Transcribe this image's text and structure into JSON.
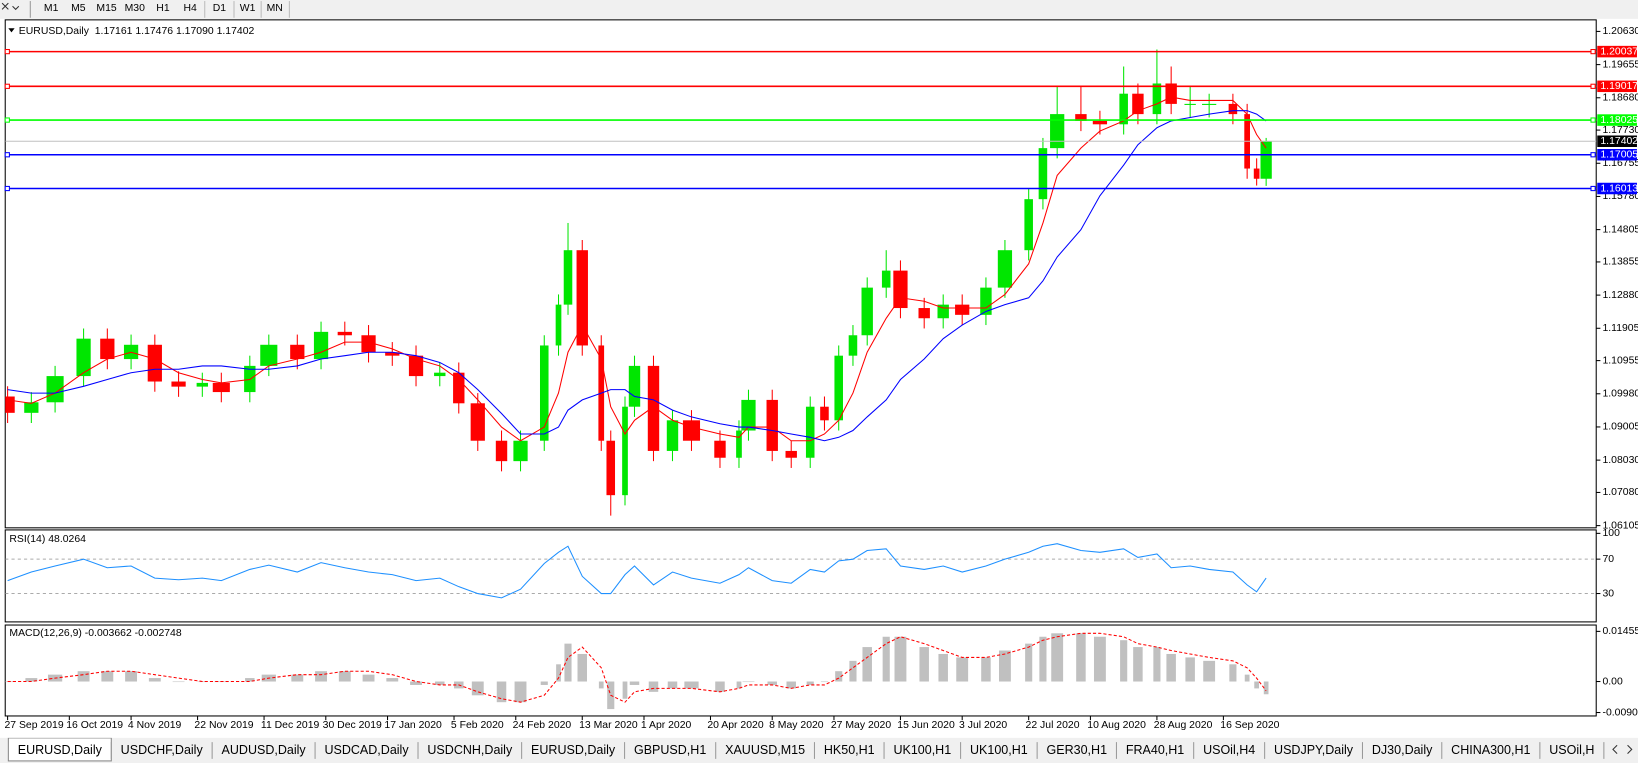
{
  "toolbar": {
    "timeframes": [
      "M1",
      "M5",
      "M15",
      "M30",
      "H1",
      "H4",
      "D1",
      "W1",
      "MN"
    ]
  },
  "chart_data": [
    {
      "type": "candlestick",
      "title": "EURUSD,Daily  1.17161 1.17476 1.17090 1.17402",
      "up_color": "#00e600",
      "down_color": "#ff0000",
      "xlim": [
        -0.5,
        334.5
      ],
      "ylim": [
        1.0604,
        1.2097
      ],
      "xticks": [
        {
          "value": 0,
          "label": "27 Sep 2019"
        },
        {
          "value": 13,
          "label": "16 Oct 2019"
        },
        {
          "value": 26,
          "label": "4 Nov 2019"
        },
        {
          "value": 40,
          "label": "22 Nov 2019"
        },
        {
          "value": 54,
          "label": "11 Dec 2019"
        },
        {
          "value": 67,
          "label": "30 Dec 2019"
        },
        {
          "value": 80,
          "label": "17 Jan 2020"
        },
        {
          "value": 94,
          "label": "5 Feb 2020"
        },
        {
          "value": 107,
          "label": "24 Feb 2020"
        },
        {
          "value": 121,
          "label": "13 Mar 2020"
        },
        {
          "value": 134,
          "label": "1 Apr 2020"
        },
        {
          "value": 148,
          "label": "20 Apr 2020"
        },
        {
          "value": 161,
          "label": "8 May 2020"
        },
        {
          "value": 174,
          "label": "27 May 2020"
        },
        {
          "value": 188,
          "label": "15 Jun 2020"
        },
        {
          "value": 201,
          "label": "3 Jul 2020"
        },
        {
          "value": 215,
          "label": "22 Jul 2020"
        },
        {
          "value": 228,
          "label": "10 Aug 2020"
        },
        {
          "value": 242,
          "label": "28 Aug 2020"
        },
        {
          "value": 256,
          "label": "16 Sep 2020"
        }
      ],
      "yticks": [
        {
          "value": 1.2063,
          "label": "1.20630"
        },
        1.19655,
        {
          "value": 1.1868,
          "label": "1.18680"
        },
        {
          "value": 1.1773,
          "label": "1.17730"
        },
        1.16755,
        {
          "value": 1.1578,
          "label": "1.15780"
        },
        1.14805,
        1.13855,
        {
          "value": 1.1288,
          "label": "1.12880"
        },
        1.11905,
        1.10955,
        {
          "value": 1.0998,
          "label": "1.09980"
        },
        1.09005,
        {
          "value": 1.0803,
          "label": "1.08030"
        },
        {
          "value": 1.0708,
          "label": "1.07080"
        },
        1.06105
      ],
      "hlines": [
        {
          "value": 1.20037,
          "color": "#ff0000"
        },
        {
          "value": 1.19017,
          "color": "#ff0000"
        },
        {
          "value": 1.18025,
          "color": "#00ff00"
        },
        {
          "value": 1.17005,
          "color": "#0000ff"
        },
        {
          "value": 1.16013,
          "color": "#0000ff"
        }
      ],
      "current_price": 1.17402,
      "x": [
        0,
        5,
        10,
        16,
        21,
        26,
        31,
        36,
        41,
        45,
        51,
        55,
        61,
        66,
        71,
        76,
        81,
        86,
        91,
        95,
        99,
        104,
        108,
        113,
        116,
        118,
        121,
        125,
        127,
        130,
        132,
        136,
        140,
        144,
        150,
        154,
        156,
        161,
        165,
        169,
        172,
        175,
        178,
        181,
        185,
        188,
        193,
        197,
        201,
        206,
        210,
        215,
        218,
        221,
        226,
        230,
        235,
        238,
        242,
        245,
        249,
        253,
        258,
        261,
        263,
        265
      ],
      "open": [
        1.099,
        1.0942,
        1.0973,
        1.105,
        1.116,
        1.11,
        1.1142,
        1.1034,
        1.1019,
        1.103,
        1.1003,
        1.108,
        1.1142,
        1.11,
        1.118,
        1.117,
        1.112,
        1.111,
        1.105,
        1.106,
        1.097,
        1.086,
        1.08,
        1.086,
        1.114,
        1.126,
        1.142,
        1.114,
        1.086,
        1.07,
        1.096,
        1.108,
        1.083,
        1.092,
        1.086,
        1.081,
        1.089,
        1.098,
        1.083,
        1.081,
        1.096,
        1.092,
        1.111,
        1.117,
        1.131,
        1.136,
        1.125,
        1.122,
        1.126,
        1.123,
        1.131,
        1.142,
        1.157,
        1.172,
        1.182,
        1.18,
        1.179,
        1.188,
        1.182,
        1.191,
        1.185,
        1.185,
        1.185,
        1.182,
        1.166,
        1.163
      ],
      "high": [
        1.102,
        1.1003,
        1.108,
        1.119,
        1.119,
        1.1172,
        1.1172,
        1.1064,
        1.106,
        1.106,
        1.111,
        1.1172,
        1.1172,
        1.121,
        1.121,
        1.12,
        1.115,
        1.114,
        1.109,
        1.109,
        1.1,
        1.089,
        1.089,
        1.117,
        1.129,
        1.15,
        1.145,
        1.117,
        1.089,
        1.099,
        1.111,
        1.111,
        1.095,
        1.095,
        1.089,
        1.092,
        1.101,
        1.101,
        1.086,
        1.099,
        1.099,
        1.114,
        1.12,
        1.134,
        1.142,
        1.139,
        1.128,
        1.129,
        1.129,
        1.134,
        1.145,
        1.16,
        1.175,
        1.19,
        1.19,
        1.183,
        1.196,
        1.191,
        1.201,
        1.196,
        1.19,
        1.188,
        1.188,
        1.185,
        1.169,
        1.175
      ],
      "low": [
        1.0912,
        1.0912,
        1.0943,
        1.102,
        1.107,
        1.107,
        1.1004,
        1.0989,
        1.0989,
        1.0973,
        1.0973,
        1.105,
        1.107,
        1.107,
        1.114,
        1.109,
        1.108,
        1.102,
        1.102,
        1.094,
        1.083,
        1.077,
        1.077,
        1.083,
        1.111,
        1.123,
        1.111,
        1.083,
        1.064,
        1.067,
        1.093,
        1.08,
        1.08,
        1.083,
        1.078,
        1.078,
        1.086,
        1.08,
        1.078,
        1.078,
        1.089,
        1.089,
        1.108,
        1.114,
        1.128,
        1.122,
        1.119,
        1.119,
        1.12,
        1.12,
        1.128,
        1.139,
        1.154,
        1.169,
        1.177,
        1.176,
        1.176,
        1.179,
        1.179,
        1.182,
        1.181,
        1.181,
        1.179,
        1.163,
        1.161,
        1.1609
      ],
      "close": [
        1.0942,
        1.0973,
        1.105,
        1.116,
        1.11,
        1.1142,
        1.1034,
        1.1019,
        1.103,
        1.1003,
        1.108,
        1.1142,
        1.11,
        1.118,
        1.117,
        1.112,
        1.111,
        1.105,
        1.106,
        1.097,
        1.086,
        1.08,
        1.086,
        1.114,
        1.126,
        1.142,
        1.114,
        1.086,
        1.07,
        1.096,
        1.108,
        1.083,
        1.092,
        1.086,
        1.081,
        1.089,
        1.098,
        1.083,
        1.081,
        1.096,
        1.092,
        1.111,
        1.117,
        1.131,
        1.136,
        1.125,
        1.122,
        1.126,
        1.123,
        1.131,
        1.142,
        1.157,
        1.172,
        1.182,
        1.18,
        1.179,
        1.188,
        1.182,
        1.191,
        1.185,
        1.185,
        1.185,
        1.182,
        1.166,
        1.163,
        1.174
      ],
      "lines": [
        {
          "color": "#ff0000",
          "values": [
            1.098,
            1.097,
            1.1,
            1.106,
            1.11,
            1.112,
            1.11,
            1.106,
            1.104,
            1.103,
            1.104,
            1.108,
            1.11,
            1.112,
            1.115,
            1.115,
            1.113,
            1.11,
            1.108,
            1.104,
            1.098,
            1.09,
            1.086,
            1.09,
            1.1,
            1.112,
            1.12,
            1.11,
            1.096,
            1.088,
            1.092,
            1.096,
            1.092,
            1.09,
            1.088,
            1.087,
            1.09,
            1.09,
            1.086,
            1.086,
            1.088,
            1.092,
            1.1,
            1.112,
            1.122,
            1.128,
            1.127,
            1.125,
            1.125,
            1.125,
            1.129,
            1.138,
            1.15,
            1.164,
            1.172,
            1.177,
            1.18,
            1.183,
            1.185,
            1.187,
            1.186,
            1.186,
            1.186,
            1.182,
            1.176,
            1.172
          ]
        },
        {
          "color": "#0000ff",
          "values": [
            1.101,
            1.1,
            1.1,
            1.102,
            1.104,
            1.106,
            1.107,
            1.107,
            1.108,
            1.108,
            1.107,
            1.107,
            1.108,
            1.11,
            1.111,
            1.112,
            1.112,
            1.111,
            1.109,
            1.106,
            1.101,
            1.094,
            1.088,
            1.088,
            1.09,
            1.095,
            1.098,
            1.1,
            1.101,
            1.101,
            1.099,
            1.098,
            1.095,
            1.093,
            1.091,
            1.09,
            1.09,
            1.089,
            1.088,
            1.087,
            1.086,
            1.087,
            1.089,
            1.093,
            1.098,
            1.104,
            1.11,
            1.116,
            1.12,
            1.124,
            1.126,
            1.128,
            1.133,
            1.14,
            1.148,
            1.158,
            1.167,
            1.173,
            1.178,
            1.18,
            1.181,
            1.182,
            1.183,
            1.183,
            1.182,
            1.18
          ]
        }
      ]
    },
    {
      "type": "line",
      "title": "RSI(14) 48.0264",
      "color": "#1e90ff",
      "xlim": [
        -0.5,
        334.5
      ],
      "ylim": [
        -3,
        104
      ],
      "yticks": [
        100,
        70,
        30
      ],
      "levels": [
        70,
        30
      ],
      "x": [
        0,
        5,
        10,
        16,
        21,
        26,
        31,
        36,
        41,
        45,
        51,
        55,
        61,
        66,
        71,
        76,
        81,
        86,
        91,
        95,
        99,
        104,
        108,
        113,
        116,
        118,
        121,
        125,
        127,
        130,
        132,
        136,
        140,
        144,
        150,
        154,
        156,
        161,
        165,
        169,
        172,
        175,
        178,
        181,
        185,
        188,
        193,
        197,
        201,
        206,
        210,
        215,
        218,
        221,
        226,
        230,
        235,
        238,
        242,
        245,
        249,
        253,
        258,
        261,
        263,
        265
      ],
      "values": [
        45,
        55,
        62,
        70,
        60,
        62,
        48,
        46,
        48,
        45,
        58,
        63,
        55,
        66,
        60,
        55,
        52,
        45,
        48,
        38,
        30,
        25,
        35,
        65,
        78,
        85,
        50,
        30,
        30,
        52,
        62,
        40,
        55,
        48,
        42,
        52,
        60,
        45,
        42,
        58,
        55,
        68,
        70,
        80,
        82,
        62,
        58,
        62,
        55,
        62,
        70,
        78,
        85,
        88,
        80,
        78,
        82,
        72,
        76,
        60,
        62,
        58,
        55,
        40,
        32,
        48
      ]
    },
    {
      "type": "macd",
      "title": "MACD(12,26,9) -0.003662 -0.002748",
      "bar_color": "#c0c0c0",
      "signal_color": "#ff0000",
      "xlim": [
        -0.5,
        334.5
      ],
      "ylim": [
        -0.01,
        0.0164
      ],
      "yticks": [
        0.014556,
        {
          "value": 0,
          "label": "0.00"
        },
        {
          "value": -0.009,
          "label": "-0.00900"
        }
      ],
      "x": [
        0,
        5,
        10,
        16,
        21,
        26,
        31,
        36,
        41,
        45,
        51,
        55,
        61,
        66,
        71,
        76,
        81,
        86,
        91,
        95,
        99,
        104,
        108,
        113,
        116,
        118,
        121,
        125,
        127,
        130,
        132,
        136,
        140,
        144,
        150,
        154,
        156,
        161,
        165,
        169,
        172,
        175,
        178,
        181,
        185,
        188,
        193,
        197,
        201,
        206,
        210,
        215,
        218,
        221,
        226,
        230,
        235,
        238,
        242,
        245,
        249,
        253,
        258,
        261,
        263,
        265
      ],
      "values": [
        0.0,
        0.001,
        0.002,
        0.003,
        0.003,
        0.003,
        0.001,
        0.0,
        0.0,
        0.0,
        0.001,
        0.002,
        0.002,
        0.003,
        0.003,
        0.002,
        0.001,
        -0.001,
        -0.001,
        -0.002,
        -0.004,
        -0.006,
        -0.006,
        -0.001,
        0.005,
        0.011,
        0.008,
        -0.002,
        -0.008,
        -0.005,
        -0.001,
        -0.003,
        -0.002,
        -0.002,
        -0.003,
        -0.002,
        0.0,
        -0.001,
        -0.002,
        -0.001,
        0.0,
        0.003,
        0.006,
        0.01,
        0.013,
        0.013,
        0.01,
        0.008,
        0.007,
        0.007,
        0.009,
        0.011,
        0.013,
        0.014,
        0.014,
        0.013,
        0.012,
        0.01,
        0.01,
        0.008,
        0.007,
        0.006,
        0.005,
        0.002,
        -0.002,
        -0.0037
      ],
      "signal": [
        0.0,
        0.0,
        0.001,
        0.002,
        0.003,
        0.003,
        0.002,
        0.001,
        0.0,
        0.0,
        0.0,
        0.001,
        0.002,
        0.002,
        0.003,
        0.003,
        0.002,
        0.0,
        -0.001,
        -0.001,
        -0.003,
        -0.005,
        -0.006,
        -0.004,
        0.001,
        0.007,
        0.01,
        0.004,
        -0.004,
        -0.006,
        -0.003,
        -0.002,
        -0.002,
        -0.002,
        -0.003,
        -0.002,
        -0.001,
        -0.001,
        -0.002,
        -0.001,
        -0.001,
        0.001,
        0.004,
        0.007,
        0.011,
        0.013,
        0.011,
        0.009,
        0.007,
        0.007,
        0.008,
        0.01,
        0.012,
        0.013,
        0.014,
        0.014,
        0.013,
        0.011,
        0.01,
        0.009,
        0.008,
        0.007,
        0.006,
        0.004,
        0.001,
        -0.0027
      ]
    }
  ],
  "tabs": [
    "EURUSD,Daily",
    "USDCHF,Daily",
    "AUDUSD,Daily",
    "USDCAD,Daily",
    "USDCNH,Daily",
    "EURUSD,Daily",
    "GBPUSD,H1",
    "XAUUSD,M15",
    "HK50,H1",
    "UK100,H1",
    "UK100,H1",
    "GER30,H1",
    "FRA40,H1",
    "USOil,H4",
    "USDJPY,Daily",
    "DJ30,Daily",
    "CHINA300,H1",
    "USOil,H"
  ]
}
